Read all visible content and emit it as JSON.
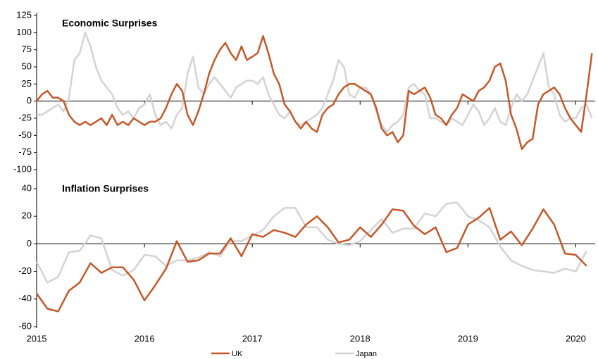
{
  "chart_data": [
    {
      "type": "line",
      "title": "Economic Surprises",
      "x": [
        2015,
        2015.05,
        2015.1,
        2015.15,
        2015.2,
        2015.25,
        2015.3,
        2015.35,
        2015.4,
        2015.45,
        2015.5,
        2015.55,
        2015.6,
        2015.65,
        2015.7,
        2015.75,
        2015.8,
        2015.85,
        2015.9,
        2015.95,
        2016,
        2016.05,
        2016.1,
        2016.15,
        2016.2,
        2016.25,
        2016.3,
        2016.35,
        2016.4,
        2016.45,
        2016.5,
        2016.55,
        2016.6,
        2016.65,
        2016.7,
        2016.75,
        2016.8,
        2016.85,
        2016.9,
        2016.95,
        2017,
        2017.05,
        2017.1,
        2017.15,
        2017.2,
        2017.25,
        2017.3,
        2017.35,
        2017.4,
        2017.45,
        2017.5,
        2017.55,
        2017.6,
        2017.65,
        2017.7,
        2017.75,
        2017.8,
        2017.85,
        2017.9,
        2017.95,
        2018,
        2018.05,
        2018.1,
        2018.15,
        2018.2,
        2018.25,
        2018.3,
        2018.35,
        2018.4,
        2018.45,
        2018.5,
        2018.55,
        2018.6,
        2018.65,
        2018.7,
        2018.75,
        2018.8,
        2018.85,
        2018.9,
        2018.95,
        2019,
        2019.05,
        2019.1,
        2019.15,
        2019.2,
        2019.25,
        2019.3,
        2019.35,
        2019.4,
        2019.45,
        2019.5,
        2019.55,
        2019.6,
        2019.65,
        2019.7,
        2019.75,
        2019.8,
        2019.85,
        2019.9,
        2019.95,
        2020,
        2020.05,
        2020.1,
        2020.15
      ],
      "series": [
        {
          "color": "#d3d3d3",
          "values": [
            -20,
            -20,
            -15,
            -10,
            -5,
            -15,
            5,
            60,
            70,
            100,
            80,
            50,
            30,
            20,
            10,
            -10,
            -20,
            -15,
            -25,
            -10,
            -5,
            10,
            -20,
            -35,
            -30,
            -40,
            -20,
            -10,
            40,
            65,
            20,
            10,
            25,
            35,
            25,
            15,
            5,
            20,
            25,
            30,
            30,
            25,
            35,
            10,
            -5,
            -20,
            -25,
            -15,
            -30,
            -35,
            -30,
            -25,
            -20,
            -10,
            10,
            30,
            60,
            50,
            10,
            5,
            20,
            20,
            10,
            -15,
            -35,
            -45,
            -35,
            -30,
            -20,
            20,
            25,
            15,
            10,
            -25,
            -25,
            -30,
            -35,
            -25,
            -30,
            -35,
            -20,
            -5,
            -15,
            -35,
            -25,
            -10,
            -30,
            -35,
            -10,
            10,
            0,
            10,
            30,
            50,
            70,
            20,
            10,
            -20,
            -30,
            -25,
            -25,
            -10,
            -5,
            -25
          ]
        },
        {
          "color": "#c4582a",
          "values": [
            0,
            10,
            15,
            5,
            5,
            0,
            -20,
            -30,
            -35,
            -30,
            -35,
            -30,
            -25,
            -35,
            -20,
            -35,
            -30,
            -35,
            -25,
            -30,
            -35,
            -30,
            -30,
            -25,
            -10,
            10,
            25,
            15,
            -20,
            -35,
            -15,
            10,
            40,
            60,
            75,
            85,
            70,
            60,
            80,
            60,
            65,
            70,
            95,
            70,
            40,
            25,
            -5,
            -15,
            -30,
            -40,
            -30,
            -40,
            -45,
            -20,
            -10,
            -5,
            10,
            20,
            25,
            25,
            20,
            15,
            10,
            -10,
            -40,
            -50,
            -45,
            -60,
            -50,
            15,
            10,
            15,
            20,
            5,
            -20,
            -25,
            -35,
            -20,
            -10,
            10,
            5,
            0,
            15,
            20,
            30,
            50,
            55,
            30,
            -20,
            -40,
            -70,
            -60,
            -55,
            -5,
            10,
            15,
            20,
            10,
            -10,
            -25,
            -35,
            -45,
            10,
            70
          ]
        }
      ],
      "xlim": [
        2015,
        2020.18
      ],
      "ylim": [
        -100,
        125
      ],
      "yticks": [
        -100,
        -75,
        -50,
        -25,
        0,
        25,
        50,
        75,
        100,
        125
      ]
    },
    {
      "type": "line",
      "title": "Inflation Surprises",
      "x": [
        2015,
        2015.1,
        2015.2,
        2015.3,
        2015.4,
        2015.5,
        2015.6,
        2015.7,
        2015.8,
        2015.9,
        2016,
        2016.1,
        2016.2,
        2016.3,
        2016.4,
        2016.5,
        2016.6,
        2016.7,
        2016.8,
        2016.9,
        2017,
        2017.1,
        2017.2,
        2017.3,
        2017.4,
        2017.5,
        2017.6,
        2017.7,
        2017.8,
        2017.9,
        2018,
        2018.1,
        2018.2,
        2018.3,
        2018.4,
        2018.5,
        2018.6,
        2018.7,
        2018.8,
        2018.9,
        2019,
        2019.1,
        2019.2,
        2019.3,
        2019.4,
        2019.5,
        2019.6,
        2019.7,
        2019.8,
        2019.9,
        2020,
        2020.1
      ],
      "series": [
        {
          "name": "Japan",
          "color": "#d3d3d3",
          "values": [
            -13,
            -28,
            -24,
            -6,
            -5,
            6,
            4,
            -19,
            -23,
            -19,
            -8,
            -9,
            -16,
            -12,
            -12,
            -10,
            -6,
            -9,
            2,
            2,
            6,
            10,
            20,
            26,
            26,
            12,
            12,
            3,
            0,
            -1,
            2,
            10,
            18,
            8,
            11,
            11,
            22,
            20,
            29,
            30,
            20,
            17,
            12,
            -2,
            -12,
            -16,
            -19,
            -20,
            -21,
            -18,
            -20,
            -5
          ]
        },
        {
          "name": "UK",
          "color": "#c4582a",
          "values": [
            -36,
            -47,
            -49,
            -34,
            -28,
            -14,
            -21,
            -17,
            -17,
            -26,
            -41,
            -30,
            -18,
            2,
            -13,
            -12,
            -7,
            -7,
            4,
            -9,
            7,
            5,
            10,
            8,
            5,
            14,
            20,
            12,
            1,
            3,
            12,
            5,
            14,
            25,
            24,
            13,
            7,
            12,
            -6,
            -3,
            14,
            19,
            26,
            3,
            9,
            -1,
            11,
            25,
            14,
            -7,
            -8,
            -16
          ]
        }
      ],
      "xlim": [
        2015,
        2020.18
      ],
      "ylim": [
        -60,
        40
      ],
      "yticks": [
        -60,
        -40,
        -20,
        0,
        20,
        40
      ],
      "xticks": [
        2015,
        2016,
        2017,
        2018,
        2019,
        2020
      ]
    }
  ]
}
